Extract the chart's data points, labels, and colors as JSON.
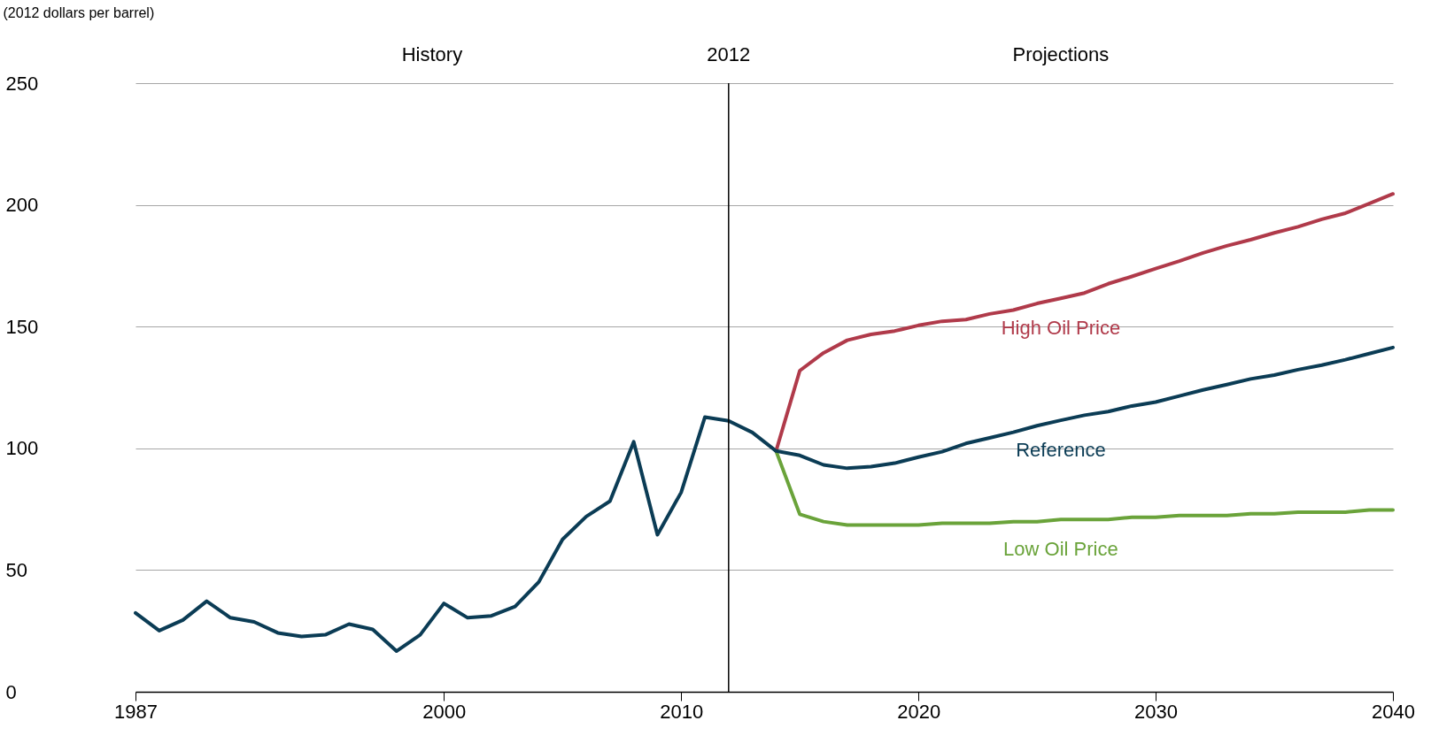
{
  "chart_data": {
    "type": "line",
    "ylabel": "(2012 dollars per barrel)",
    "xlim": [
      1987,
      2040
    ],
    "ylim": [
      0,
      250
    ],
    "xticks": [
      1987,
      2000,
      2010,
      2020,
      2030,
      2040
    ],
    "yticks": [
      0,
      50,
      100,
      150,
      200,
      250
    ],
    "grid": "y",
    "legend": false,
    "annotations": [
      "History",
      "Projections"
    ],
    "ref_lines": [
      {
        "axis": "x",
        "value": 2012,
        "label": "2012",
        "color": "#000000"
      }
    ],
    "series": [
      {
        "name": "High Oil Price",
        "color": "#b03a4a",
        "x": [
          2014,
          2015,
          2016,
          2017,
          2018,
          2019,
          2020,
          2021,
          2022,
          2023,
          2024,
          2025,
          2026,
          2027,
          2028,
          2029,
          2030,
          2031,
          2032,
          2033,
          2034,
          2035,
          2036,
          2037,
          2038,
          2039,
          2040
        ],
        "values": [
          98.9,
          131.9,
          139.2,
          144.4,
          146.8,
          148.2,
          150.5,
          152.2,
          152.9,
          155.2,
          156.8,
          159.5,
          161.6,
          163.8,
          167.6,
          170.6,
          173.8,
          176.9,
          180.3,
          183.2,
          185.7,
          188.5,
          191,
          194.1,
          196.6,
          200.5,
          204.5
        ]
      },
      {
        "name": "Low Oil Price",
        "color": "#6aa33a",
        "x": [
          2014,
          2015,
          2016,
          2017,
          2018,
          2019,
          2020,
          2021,
          2022,
          2023,
          2024,
          2025,
          2026,
          2027,
          2028,
          2029,
          2030,
          2031,
          2032,
          2033,
          2034,
          2035,
          2036,
          2037,
          2038,
          2039,
          2040
        ],
        "values": [
          98.9,
          72.9,
          69.9,
          68.5,
          68.5,
          68.5,
          68.5,
          69.2,
          69.2,
          69.2,
          69.9,
          69.9,
          70.8,
          70.8,
          70.8,
          71.7,
          71.7,
          72.4,
          72.4,
          72.4,
          73.1,
          73.1,
          73.8,
          73.8,
          73.8,
          74.7,
          74.7
        ]
      },
      {
        "name": "Reference",
        "color": "#0b3c55",
        "x": [
          1987,
          1988,
          1989,
          1990,
          1991,
          1992,
          1993,
          1994,
          1995,
          1996,
          1997,
          1998,
          1999,
          2000,
          2001,
          2002,
          2003,
          2004,
          2005,
          2006,
          2007,
          2008,
          2009,
          2010,
          2011,
          2012,
          2013,
          2014,
          2015,
          2016,
          2017,
          2018,
          2019,
          2020,
          2021,
          2022,
          2023,
          2024,
          2025,
          2026,
          2027,
          2028,
          2029,
          2030,
          2031,
          2032,
          2033,
          2034,
          2035,
          2036,
          2037,
          2038,
          2039,
          2040
        ],
        "values": [
          32.4,
          25.1,
          29.5,
          37.2,
          30.4,
          28.7,
          24.2,
          22.7,
          23.4,
          27.8,
          25.6,
          16.7,
          23.4,
          36.3,
          30.4,
          31.2,
          35,
          45.1,
          62.6,
          72,
          78.3,
          102.7,
          64.5,
          81.9,
          112.8,
          111.3,
          106.5,
          98.9,
          97.1,
          93.2,
          91.8,
          92.5,
          93.9,
          96.4,
          98.6,
          102,
          104.3,
          106.6,
          109.3,
          111.5,
          113.6,
          115.1,
          117.4,
          119,
          121.5,
          124,
          126.2,
          128.5,
          130.1,
          132.3,
          134.2,
          136.4,
          138.9,
          141.4
        ]
      }
    ]
  }
}
